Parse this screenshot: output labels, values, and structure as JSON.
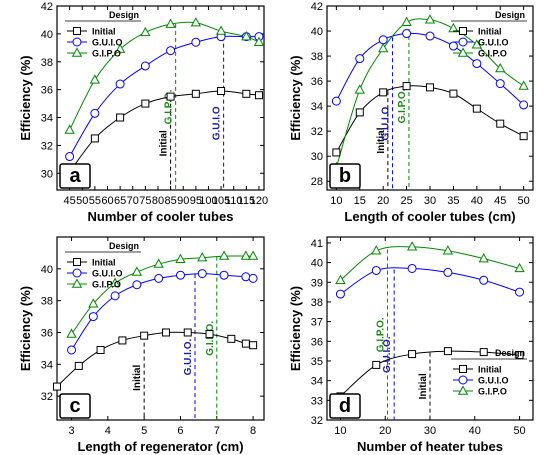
{
  "colors": {
    "initial": "#000000",
    "guio": "#0000ff",
    "gipo": "#008800",
    "guio_label": "#1a1aaa",
    "gipo_label": "#1a8a1a"
  },
  "chart_data": [
    {
      "type": "line",
      "panel": "a",
      "xlabel": "Number of cooler tubes",
      "ylabel": "Efficiency (%)",
      "xlim": [
        40,
        122
      ],
      "ylim": [
        28.8,
        42
      ],
      "xticks": [
        45,
        50,
        55,
        60,
        65,
        70,
        75,
        80,
        85,
        90,
        95,
        100,
        105,
        110,
        115,
        120
      ],
      "yticks": [
        30,
        32,
        34,
        36,
        38,
        40,
        42
      ],
      "legend": {
        "title": "Design",
        "position": "top-left"
      },
      "series": [
        {
          "name": "Initial",
          "key": "initial",
          "marker": "square",
          "x": [
            45,
            55,
            65,
            75,
            85,
            95,
            105,
            115,
            120
          ],
          "y": [
            30.1,
            32.5,
            34.0,
            35.0,
            35.5,
            35.7,
            35.9,
            35.7,
            35.6
          ]
        },
        {
          "name": "G.U.I.O",
          "key": "guio",
          "marker": "circle",
          "x": [
            45,
            55,
            65,
            75,
            85,
            95,
            105,
            115,
            120
          ],
          "y": [
            31.2,
            34.3,
            36.4,
            37.7,
            38.8,
            39.4,
            39.8,
            39.8,
            39.8
          ]
        },
        {
          "name": "G.I.P.O",
          "key": "gipo",
          "marker": "triangle",
          "x": [
            45,
            55,
            65,
            75,
            85,
            95,
            105,
            115,
            120
          ],
          "y": [
            33.1,
            36.7,
            38.9,
            40.1,
            40.7,
            40.8,
            40.2,
            39.8,
            39.4
          ]
        }
      ],
      "vlines": [
        {
          "key": "initial",
          "x": 85,
          "label": "Initial"
        },
        {
          "key": "guio",
          "x": 106,
          "label": "G.U.I.O"
        },
        {
          "key": "gipo",
          "x": 87,
          "label": "G.I.P.O."
        }
      ]
    },
    {
      "type": "line",
      "panel": "b",
      "xlabel": "Length of cooler tubes (cm)",
      "ylabel": "Efficiency (%)",
      "xlim": [
        8,
        52
      ],
      "ylim": [
        27.3,
        42
      ],
      "xticks": [
        10,
        15,
        20,
        25,
        30,
        35,
        40,
        45,
        50
      ],
      "yticks": [
        28,
        30,
        32,
        34,
        36,
        38,
        40,
        42
      ],
      "legend": {
        "title": "Design",
        "position": "top-right"
      },
      "series": [
        {
          "name": "Initial",
          "key": "initial",
          "marker": "square",
          "x": [
            10,
            15,
            20,
            25,
            30,
            35,
            40,
            45,
            50
          ],
          "y": [
            30.3,
            33.5,
            35.1,
            35.6,
            35.5,
            35.0,
            33.8,
            32.6,
            31.6
          ]
        },
        {
          "name": "G.U.I.O",
          "key": "guio",
          "marker": "circle",
          "x": [
            10,
            15,
            20,
            25,
            30,
            35,
            40,
            45,
            50
          ],
          "y": [
            34.4,
            37.8,
            39.3,
            39.8,
            39.6,
            38.8,
            37.4,
            35.8,
            34.1
          ]
        },
        {
          "name": "G.I.P.O",
          "key": "gipo",
          "marker": "triangle",
          "x": [
            10,
            15,
            20,
            25,
            30,
            35,
            40,
            45,
            50
          ],
          "y": [
            29.1,
            35.3,
            38.6,
            40.7,
            40.9,
            40.2,
            38.9,
            37.0,
            35.6
          ]
        }
      ],
      "vlines": [
        {
          "key": "initial",
          "x": 21,
          "label": "Initial"
        },
        {
          "key": "guio",
          "x": 22,
          "label": "G.U.I.O"
        },
        {
          "key": "gipo",
          "x": 25.5,
          "label": "G.I.P.O."
        }
      ]
    },
    {
      "type": "line",
      "panel": "c",
      "xlabel": "Length of regenerator (cm)",
      "ylabel": "Efficiency (%)",
      "xlim": [
        2.6,
        8.3
      ],
      "ylim": [
        30.5,
        42
      ],
      "xticks": [
        3,
        4,
        5,
        6,
        7,
        8
      ],
      "yticks": [
        32,
        34,
        36,
        38,
        40
      ],
      "legend": {
        "title": "Design",
        "position": "top-left"
      },
      "series": [
        {
          "name": "Initial",
          "key": "initial",
          "marker": "square",
          "x": [
            2.6,
            3.2,
            3.8,
            4.4,
            5.0,
            5.6,
            6.2,
            6.8,
            7.4,
            7.8,
            8.0
          ],
          "y": [
            32.6,
            33.9,
            34.9,
            35.5,
            35.8,
            36.0,
            36.0,
            35.9,
            35.6,
            35.3,
            35.2
          ]
        },
        {
          "name": "G.U.I.O",
          "key": "guio",
          "marker": "circle",
          "x": [
            3.0,
            3.6,
            4.2,
            4.8,
            5.4,
            6.0,
            6.6,
            7.2,
            7.8,
            8.0
          ],
          "y": [
            34.9,
            37.0,
            38.3,
            39.0,
            39.4,
            39.6,
            39.7,
            39.6,
            39.5,
            39.4
          ]
        },
        {
          "name": "G.I.P.O",
          "key": "gipo",
          "marker": "triangle",
          "x": [
            3.0,
            3.6,
            4.2,
            4.8,
            5.4,
            6.0,
            6.6,
            7.2,
            7.8,
            8.0
          ],
          "y": [
            35.9,
            37.8,
            39.1,
            39.8,
            40.3,
            40.6,
            40.7,
            40.8,
            40.8,
            40.8
          ]
        }
      ],
      "vlines": [
        {
          "key": "initial",
          "x": 5.0,
          "label": "Initial"
        },
        {
          "key": "guio",
          "x": 6.4,
          "label": "G.U.I.O."
        },
        {
          "key": "gipo",
          "x": 7.0,
          "label": "G.I.P.O."
        }
      ]
    },
    {
      "type": "line",
      "panel": "d",
      "xlabel": "Number of heater tubes",
      "ylabel": "Efficiency (%)",
      "xlim": [
        7,
        53
      ],
      "ylim": [
        32,
        41.3
      ],
      "xticks": [
        10,
        20,
        30,
        40,
        50
      ],
      "yticks": [
        32,
        33,
        34,
        35,
        36,
        37,
        38,
        39,
        40,
        41
      ],
      "legend": {
        "title": "Design",
        "position": "bottom-right"
      },
      "series": [
        {
          "name": "Initial",
          "key": "initial",
          "marker": "square",
          "x": [
            10,
            18,
            26,
            34,
            42,
            50
          ],
          "y": [
            33.2,
            34.8,
            35.35,
            35.5,
            35.45,
            35.3
          ]
        },
        {
          "name": "G.U.I.O",
          "key": "guio",
          "marker": "circle",
          "x": [
            10,
            18,
            26,
            34,
            42,
            50
          ],
          "y": [
            38.4,
            39.6,
            39.7,
            39.5,
            39.1,
            38.5
          ]
        },
        {
          "name": "G.I.P.O",
          "key": "gipo",
          "marker": "triangle",
          "x": [
            10,
            18,
            26,
            34,
            42,
            50
          ],
          "y": [
            39.1,
            40.6,
            40.8,
            40.6,
            40.2,
            39.7
          ]
        }
      ],
      "vlines": [
        {
          "key": "initial",
          "x": 30,
          "label": "Initial"
        },
        {
          "key": "guio",
          "x": 22,
          "label": "G.U.I.O."
        },
        {
          "key": "gipo",
          "x": 20.5,
          "label": "G.I.P.O."
        }
      ]
    }
  ]
}
